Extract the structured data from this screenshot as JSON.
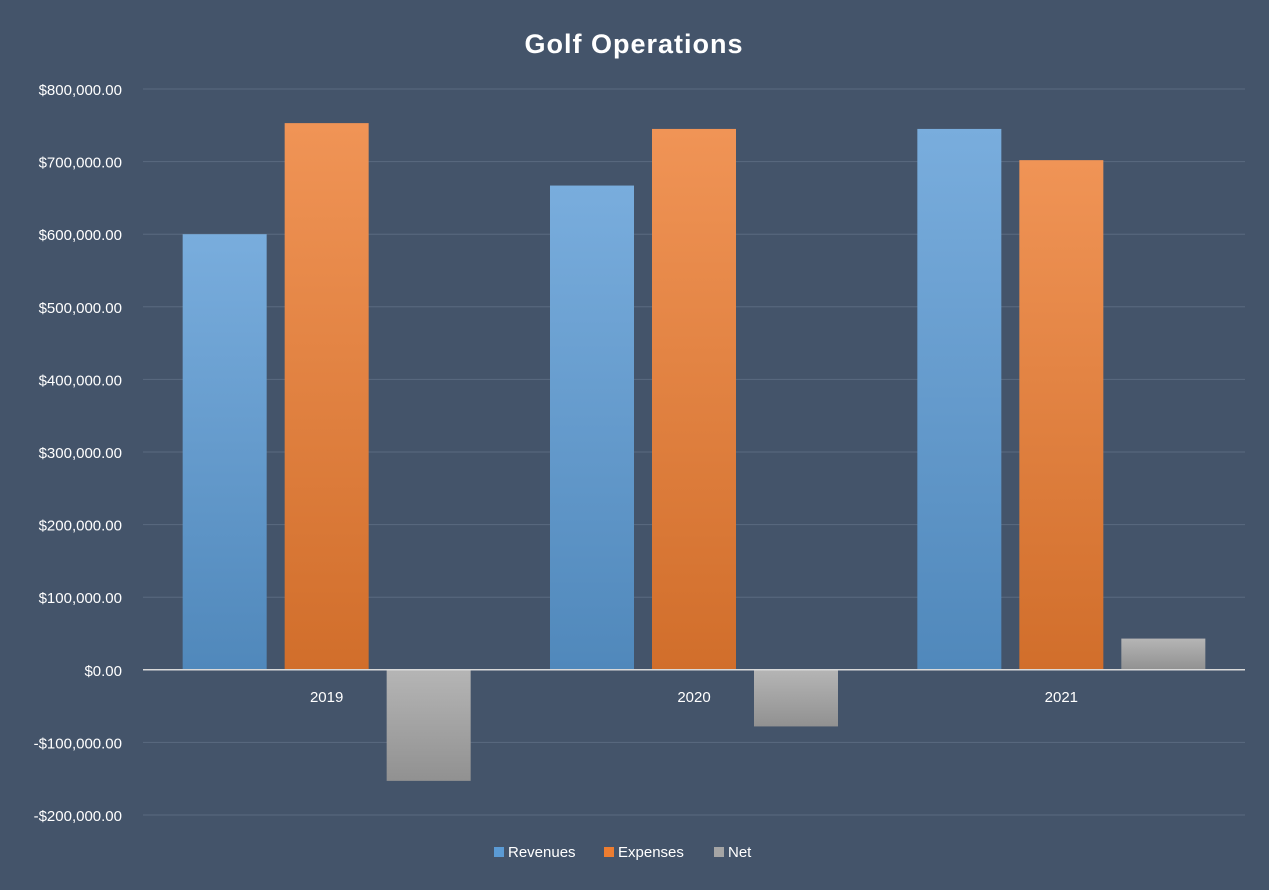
{
  "chart_data": {
    "type": "bar",
    "title": "Golf Operations",
    "categories": [
      "2019",
      "2020",
      "2021"
    ],
    "series": [
      {
        "name": "Revenues",
        "values": [
          600000,
          667000,
          745000
        ],
        "color": "#5B9BD5"
      },
      {
        "name": "Expenses",
        "values": [
          753000,
          745000,
          702000
        ],
        "color": "#ED7D31"
      },
      {
        "name": "Net",
        "values": [
          -153000,
          -78000,
          43000
        ],
        "color": "#A5A5A5"
      }
    ],
    "ylim": [
      -200000,
      800000
    ],
    "yticks": [
      800000,
      700000,
      600000,
      500000,
      400000,
      300000,
      200000,
      100000,
      0,
      -100000,
      -200000
    ],
    "ytick_labels": [
      "$800,000.00",
      "$700,000.00",
      "$600,000.00",
      "$500,000.00",
      "$400,000.00",
      "$300,000.00",
      "$200,000.00",
      "$100,000.00",
      "$0.00",
      "-$100,000.00",
      "-$200,000.00"
    ],
    "grid": true,
    "legend_position": "bottom",
    "background_color": "#44546A"
  }
}
